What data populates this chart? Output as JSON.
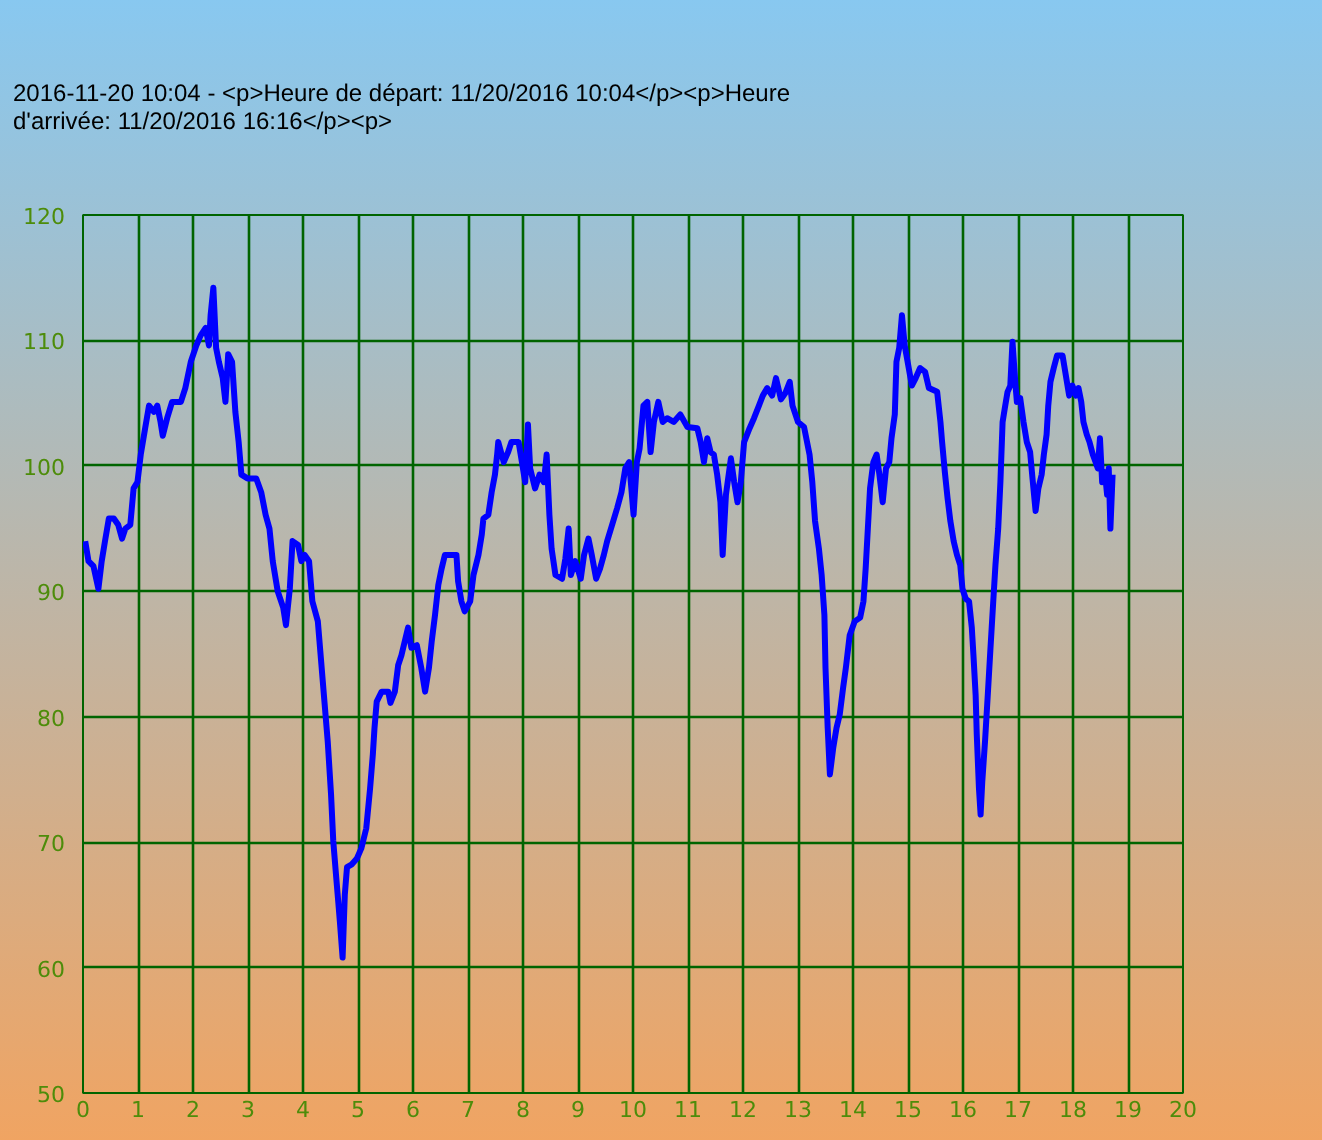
{
  "chart_data": {
    "type": "line",
    "title": "2016-11-20 10:04 - <p>Heure de départ: 11/20/2016 10:04</p><p>Heure d'arrivée: 11/20/2016 16:16</p><p>",
    "x": [
      0.04,
      0.1,
      0.19,
      0.28,
      0.34,
      0.4,
      0.47,
      0.56,
      0.64,
      0.71,
      0.77,
      0.86,
      0.92,
      0.99,
      1.05,
      1.13,
      1.2,
      1.29,
      1.35,
      1.41,
      1.45,
      1.53,
      1.62,
      1.78,
      1.86,
      1.96,
      2.06,
      2.14,
      2.23,
      2.29,
      2.32,
      2.37,
      2.42,
      2.47,
      2.54,
      2.59,
      2.64,
      2.71,
      2.77,
      2.83,
      2.88,
      2.99,
      3.15,
      3.24,
      3.32,
      3.39,
      3.45,
      3.54,
      3.64,
      3.69,
      3.76,
      3.81,
      3.91,
      3.97,
      4.03,
      4.11,
      4.17,
      4.27,
      4.33,
      4.39,
      4.45,
      4.51,
      4.55,
      4.6,
      4.64,
      4.67,
      4.72,
      4.76,
      4.8,
      4.88,
      4.98,
      5.06,
      5.15,
      5.22,
      5.27,
      5.3,
      5.34,
      5.43,
      5.55,
      5.59,
      5.67,
      5.73,
      5.79,
      5.91,
      5.97,
      6.07,
      6.15,
      6.22,
      6.29,
      6.34,
      6.4,
      6.46,
      6.52,
      6.58,
      6.79,
      6.82,
      6.88,
      6.94,
      7.04,
      7.1,
      7.19,
      7.25,
      7.28,
      7.37,
      7.43,
      7.49,
      7.53,
      7.55,
      7.65,
      7.73,
      7.79,
      7.92,
      7.98,
      8.04,
      8.09,
      8.13,
      8.22,
      8.3,
      8.38,
      8.43,
      8.48,
      8.52,
      8.59,
      8.71,
      8.77,
      8.83,
      8.87,
      8.95,
      9.05,
      9.11,
      9.19,
      9.25,
      9.33,
      9.4,
      9.47,
      9.53,
      9.62,
      9.71,
      9.79,
      9.86,
      9.93,
      10.01,
      10.07,
      10.12,
      10.19,
      10.26,
      10.32,
      10.38,
      10.46,
      10.54,
      10.62,
      10.74,
      10.86,
      10.99,
      11.17,
      11.23,
      11.29,
      11.35,
      11.41,
      11.47,
      11.53,
      11.59,
      11.63,
      11.69,
      11.78,
      11.84,
      11.9,
      11.96,
      12.02,
      12.12,
      12.2,
      12.29,
      12.36,
      12.44,
      12.53,
      12.6,
      12.69,
      12.77,
      12.85,
      12.9,
      13.0,
      13.11,
      13.21,
      13.26,
      13.31,
      13.38,
      13.43,
      13.48,
      13.5,
      13.54,
      13.58,
      13.64,
      13.7,
      13.76,
      13.82,
      13.87,
      13.94,
      14.03,
      14.13,
      14.19,
      14.23,
      14.27,
      14.31,
      14.37,
      14.43,
      14.48,
      14.54,
      14.6,
      14.66,
      14.7,
      14.76,
      14.79,
      14.84,
      14.89,
      14.94,
      15.07,
      15.14,
      15.22,
      15.31,
      15.38,
      15.53,
      15.59,
      15.62,
      15.67,
      15.72,
      15.77,
      15.83,
      15.89,
      15.95,
      15.99,
      16.05,
      16.11,
      16.16,
      16.19,
      16.23,
      16.25,
      16.29,
      16.32,
      16.35,
      16.4,
      16.45,
      16.5,
      16.55,
      16.59,
      16.64,
      16.68,
      16.72,
      16.76,
      16.81,
      16.86,
      16.9,
      16.95,
      16.98,
      17.04,
      17.1,
      17.16,
      17.22,
      17.27,
      17.32,
      17.37,
      17.43,
      17.47,
      17.52,
      17.55,
      17.59,
      17.65,
      17.71,
      17.81,
      17.87,
      17.93,
      17.99,
      18.05,
      18.1,
      18.15,
      18.19,
      18.25,
      18.3,
      18.36,
      18.41,
      18.45,
      18.49,
      18.53,
      18.58,
      18.62,
      18.65,
      18.68,
      18.72
    ],
    "series": [
      {
        "color": "#0000ff",
        "values": [
          94.0,
          92.4,
          92.0,
          90.2,
          92.4,
          94.0,
          95.8,
          95.8,
          95.3,
          94.2,
          95.0,
          95.3,
          98.2,
          98.7,
          100.9,
          103.0,
          104.8,
          104.3,
          104.8,
          103.5,
          102.4,
          103.8,
          105.1,
          105.1,
          106.2,
          108.3,
          109.6,
          110.4,
          111.0,
          109.6,
          112.0,
          114.2,
          109.4,
          108.3,
          107.0,
          105.1,
          108.9,
          108.3,
          104.3,
          101.9,
          99.3,
          99.0,
          99.0,
          97.9,
          96.1,
          95.0,
          92.4,
          90.0,
          88.7,
          87.3,
          90.2,
          94.0,
          93.7,
          92.4,
          92.9,
          92.4,
          89.2,
          87.6,
          84.4,
          81.2,
          78.0,
          73.8,
          70.1,
          67.4,
          65.3,
          63.7,
          60.8,
          65.8,
          68.0,
          68.2,
          68.7,
          69.5,
          71.1,
          74.3,
          77.0,
          79.1,
          81.2,
          82.0,
          82.0,
          81.1,
          82.0,
          84.1,
          84.9,
          87.1,
          85.5,
          85.7,
          83.9,
          82.0,
          83.9,
          86.0,
          88.1,
          90.5,
          91.8,
          92.9,
          92.9,
          90.8,
          89.2,
          88.4,
          89.2,
          91.3,
          92.9,
          94.5,
          95.8,
          96.1,
          97.9,
          99.3,
          100.9,
          101.9,
          100.3,
          101.1,
          101.9,
          101.9,
          100.3,
          98.7,
          103.3,
          99.8,
          98.2,
          99.3,
          98.7,
          100.9,
          96.1,
          93.4,
          91.3,
          91.0,
          92.6,
          95.0,
          91.3,
          92.4,
          91.0,
          92.9,
          94.2,
          92.9,
          91.0,
          91.8,
          92.9,
          94.0,
          95.3,
          96.6,
          97.9,
          99.8,
          100.3,
          96.1,
          100.3,
          101.4,
          104.8,
          105.1,
          101.1,
          103.5,
          105.1,
          103.5,
          103.8,
          103.5,
          104.1,
          103.1,
          103.0,
          101.9,
          100.3,
          102.2,
          101.1,
          100.9,
          99.3,
          97.1,
          92.9,
          97.7,
          100.6,
          98.7,
          97.1,
          98.7,
          101.9,
          103.0,
          103.8,
          104.8,
          105.6,
          106.2,
          105.6,
          107.0,
          105.3,
          105.8,
          106.7,
          104.8,
          103.5,
          103.1,
          100.9,
          98.7,
          95.6,
          93.4,
          91.3,
          88.1,
          83.9,
          79.1,
          75.4,
          77.5,
          79.1,
          80.2,
          82.3,
          83.9,
          86.5,
          87.6,
          87.9,
          89.2,
          91.8,
          95.0,
          98.2,
          100.3,
          100.9,
          99.3,
          97.1,
          99.8,
          100.3,
          102.2,
          104.1,
          108.3,
          109.4,
          112.0,
          109.6,
          106.4,
          107.0,
          107.8,
          107.5,
          106.2,
          105.9,
          103.5,
          101.9,
          99.5,
          97.4,
          95.6,
          94.0,
          92.9,
          92.1,
          90.2,
          89.4,
          89.2,
          87.1,
          84.9,
          81.7,
          78.6,
          74.3,
          72.2,
          74.8,
          78.0,
          81.7,
          85.5,
          89.2,
          92.1,
          95.0,
          98.7,
          103.5,
          104.6,
          105.9,
          106.4,
          109.9,
          106.7,
          105.1,
          105.4,
          103.5,
          101.9,
          101.1,
          98.7,
          96.4,
          98.2,
          99.3,
          100.9,
          102.5,
          104.8,
          106.7,
          107.8,
          108.8,
          108.8,
          107.2,
          105.6,
          106.4,
          105.6,
          106.2,
          105.1,
          103.5,
          102.5,
          101.9,
          100.9,
          100.3,
          99.8,
          102.2,
          98.7,
          99.5,
          97.7,
          99.8,
          95.0,
          99.3
        ]
      }
    ],
    "xlim": [
      0,
      20
    ],
    "ylim": [
      50,
      120
    ],
    "xticks": [
      0,
      1,
      2,
      3,
      4,
      5,
      6,
      7,
      8,
      9,
      10,
      11,
      12,
      13,
      14,
      15,
      16,
      17,
      18,
      19,
      20
    ],
    "yticks": [
      50,
      60,
      70,
      80,
      90,
      100,
      110,
      120
    ],
    "grid": true,
    "marker": "none",
    "line_style": "solid"
  }
}
